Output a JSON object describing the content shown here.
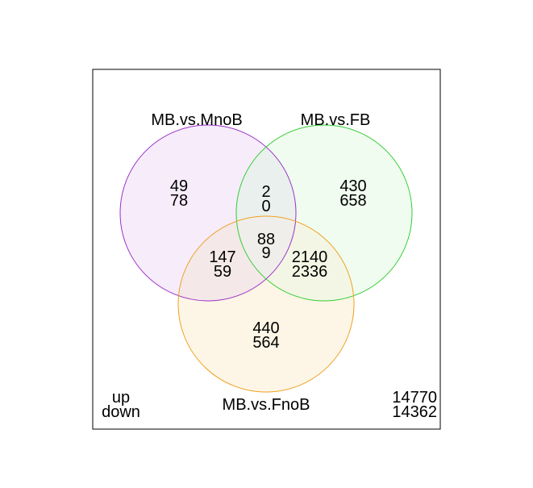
{
  "sets": [
    {
      "id": "A",
      "label": "MB.vs.MnoB",
      "stroke": "#9b30c8",
      "fill": "#f6ecfa"
    },
    {
      "id": "B",
      "label": "MB.vs.FB",
      "stroke": "#33cc33",
      "fill": "#effcef"
    },
    {
      "id": "C",
      "label": "MB.vs.FnoB",
      "stroke": "#f0a020",
      "fill": "#fdf6e6"
    }
  ],
  "overlap_fills": {
    "AB": "#e9f0ee",
    "AC": "#f4e8e8",
    "BC": "#f3f6e4",
    "ABC": "#efeeea"
  },
  "regions": {
    "A_only": {
      "up": "49",
      "down": "78"
    },
    "B_only": {
      "up": "430",
      "down": "658"
    },
    "C_only": {
      "up": "440",
      "down": "564"
    },
    "AB": {
      "up": "2",
      "down": "0"
    },
    "AC": {
      "up": "147",
      "down": "59"
    },
    "BC": {
      "up": "2140",
      "down": "2336"
    },
    "ABC": {
      "up": "88",
      "down": "9"
    }
  },
  "legend": {
    "up": "up",
    "down": "down"
  },
  "outside": {
    "up": "14770",
    "down": "14362"
  }
}
